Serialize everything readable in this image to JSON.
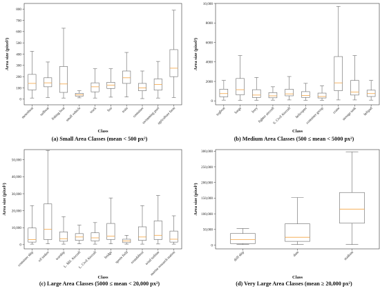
{
  "chart_data": [
    {
      "type": "boxplot",
      "caption": "(a) Small Area Classes (mean < 500 px²)",
      "xlabel": "Class",
      "ylabel": "Area size (pixel²)",
      "ylim": [
        -50,
        850
      ],
      "yticks": [
        0,
        100,
        200,
        300,
        400,
        500,
        600,
        700,
        800
      ],
      "ytick_labels": [
        "0",
        "100",
        "200",
        "300",
        "400",
        "500",
        "600",
        "700",
        "800"
      ],
      "categories": [
        "motorboat",
        "sailboat",
        "fishing boat",
        "small vehicle",
        "truck",
        "bus",
        "train",
        "container",
        "swimming pool",
        "agriculture farm"
      ],
      "boxes": [
        {
          "whislo": 10,
          "q1": 82,
          "med": 140,
          "q3": 220,
          "whishi": 425
        },
        {
          "whislo": 15,
          "q1": 110,
          "med": 145,
          "q3": 190,
          "whishi": 330
        },
        {
          "whislo": 10,
          "q1": 60,
          "med": 135,
          "q3": 290,
          "whishi": 630
        },
        {
          "whislo": 12,
          "q1": 27,
          "med": 38,
          "q3": 52,
          "whishi": 75
        },
        {
          "whislo": 10,
          "q1": 65,
          "med": 110,
          "q3": 145,
          "whishi": 270
        },
        {
          "whislo": 18,
          "q1": 95,
          "med": 125,
          "q3": 150,
          "whishi": 270
        },
        {
          "whislo": 20,
          "q1": 140,
          "med": 190,
          "q3": 250,
          "whishi": 415
        },
        {
          "whislo": 5,
          "q1": 75,
          "med": 100,
          "q3": 140,
          "whishi": 250
        },
        {
          "whislo": 10,
          "q1": 80,
          "med": 130,
          "q3": 180,
          "whishi": 335
        },
        {
          "whislo": 15,
          "q1": 200,
          "med": 275,
          "q3": 440,
          "whishi": 790
        }
      ]
    },
    {
      "type": "boxplot",
      "caption": "(b) Medium Area Classes (500 ≤ mean < 5000 px²)",
      "xlabel": "Class",
      "ylabel": "Area size (pixel²)",
      "ylim": [
        -400,
        10000
      ],
      "yticks": [
        0,
        2000,
        4000,
        6000,
        8000,
        10000
      ],
      "ytick_labels": [
        "0",
        "2000",
        "4000",
        "6000",
        "8000",
        "10,000"
      ],
      "categories": [
        "tugboat",
        "barge",
        "ferry",
        "fighter aircraft",
        "S. Civil Aircraft",
        "helicopter",
        "container group",
        "crane",
        "storage tank",
        "helipad"
      ],
      "boxes": [
        {
          "whislo": 80,
          "q1": 420,
          "med": 750,
          "q3": 1200,
          "whishi": 2100
        },
        {
          "whislo": 60,
          "q1": 620,
          "med": 1150,
          "q3": 2300,
          "whishi": 4650
        },
        {
          "whislo": 60,
          "q1": 350,
          "med": 600,
          "q3": 1150,
          "whishi": 2400
        },
        {
          "whislo": 80,
          "q1": 320,
          "med": 520,
          "q3": 850,
          "whishi": 1450
        },
        {
          "whislo": 100,
          "q1": 520,
          "med": 720,
          "q3": 1200,
          "whishi": 2500
        },
        {
          "whislo": 60,
          "q1": 360,
          "med": 560,
          "q3": 950,
          "whishi": 1800
        },
        {
          "whislo": 60,
          "q1": 300,
          "med": 450,
          "q3": 800,
          "whishi": 1550
        },
        {
          "whislo": 100,
          "q1": 1050,
          "med": 1850,
          "q3": 4550,
          "whishi": 9700
        },
        {
          "whislo": 100,
          "q1": 600,
          "med": 900,
          "q3": 2100,
          "whishi": 4650
        },
        {
          "whislo": 80,
          "q1": 450,
          "med": 750,
          "q3": 1100,
          "whishi": 2100
        }
      ]
    },
    {
      "type": "boxplot",
      "caption": "(c) Large Area Classes (5000 ≤ mean < 20,000 px²)",
      "xlabel": "Class",
      "ylabel": "Area size (pixel²)",
      "ylim": [
        -2500,
        56000
      ],
      "yticks": [
        0,
        10000,
        20000,
        30000,
        40000,
        50000
      ],
      "ytick_labels": [
        "0",
        "10,000",
        "20,000",
        "30,000",
        "40,000",
        "50,000"
      ],
      "categories": [
        "container ship",
        "oil tanker",
        "warship",
        "L. Mil. Aircraft",
        "L. Civil Aircraft",
        "bridge",
        "sports field",
        "roundabout",
        "wind turbine",
        "marine research station"
      ],
      "boxes": [
        {
          "whislo": 300,
          "q1": 1500,
          "med": 3000,
          "q3": 9800,
          "whishi": 23000
        },
        {
          "whislo": 500,
          "q1": 3000,
          "med": 9000,
          "q3": 24000,
          "whishi": 55500
        },
        {
          "whislo": 300,
          "q1": 2000,
          "med": 3500,
          "q3": 7500,
          "whishi": 16500
        },
        {
          "whislo": 500,
          "q1": 2500,
          "med": 4500,
          "q3": 6500,
          "whishi": 11500
        },
        {
          "whislo": 300,
          "q1": 2200,
          "med": 4000,
          "q3": 7000,
          "whishi": 13000
        },
        {
          "whislo": 500,
          "q1": 3000,
          "med": 5000,
          "q3": 12500,
          "whishi": 27500
        },
        {
          "whislo": 300,
          "q1": 1200,
          "med": 2200,
          "q3": 3200,
          "whishi": 5500
        },
        {
          "whislo": 300,
          "q1": 2500,
          "med": 4500,
          "q3": 10500,
          "whishi": 23000
        },
        {
          "whislo": 400,
          "q1": 3000,
          "med": 5500,
          "q3": 14000,
          "whishi": 29000
        },
        {
          "whislo": 300,
          "q1": 1500,
          "med": 3200,
          "q3": 8000,
          "whishi": 17000
        }
      ]
    },
    {
      "type": "boxplot",
      "caption": "(d) Very Large Area Classes (mean ≥ 20,000 px²)",
      "xlabel": "Class",
      "ylabel": "Area size (pixel²)",
      "ylim": [
        -12000,
        305000
      ],
      "yticks": [
        0,
        50000,
        100000,
        150000,
        200000,
        250000,
        300000
      ],
      "ytick_labels": [
        "0",
        "50,000",
        "100,000",
        "150,000",
        "200,000",
        "250,000",
        "300,000"
      ],
      "categories": [
        "drill ship",
        "dam",
        "stadium"
      ],
      "boxes": [
        {
          "whislo": 2000,
          "q1": 5000,
          "med": 18000,
          "q3": 37000,
          "whishi": 53000
        },
        {
          "whislo": 2000,
          "q1": 12000,
          "med": 25000,
          "q3": 68000,
          "whishi": 152000
        },
        {
          "whislo": 2000,
          "q1": 70000,
          "med": 115000,
          "q3": 168000,
          "whishi": 298000
        }
      ]
    }
  ]
}
